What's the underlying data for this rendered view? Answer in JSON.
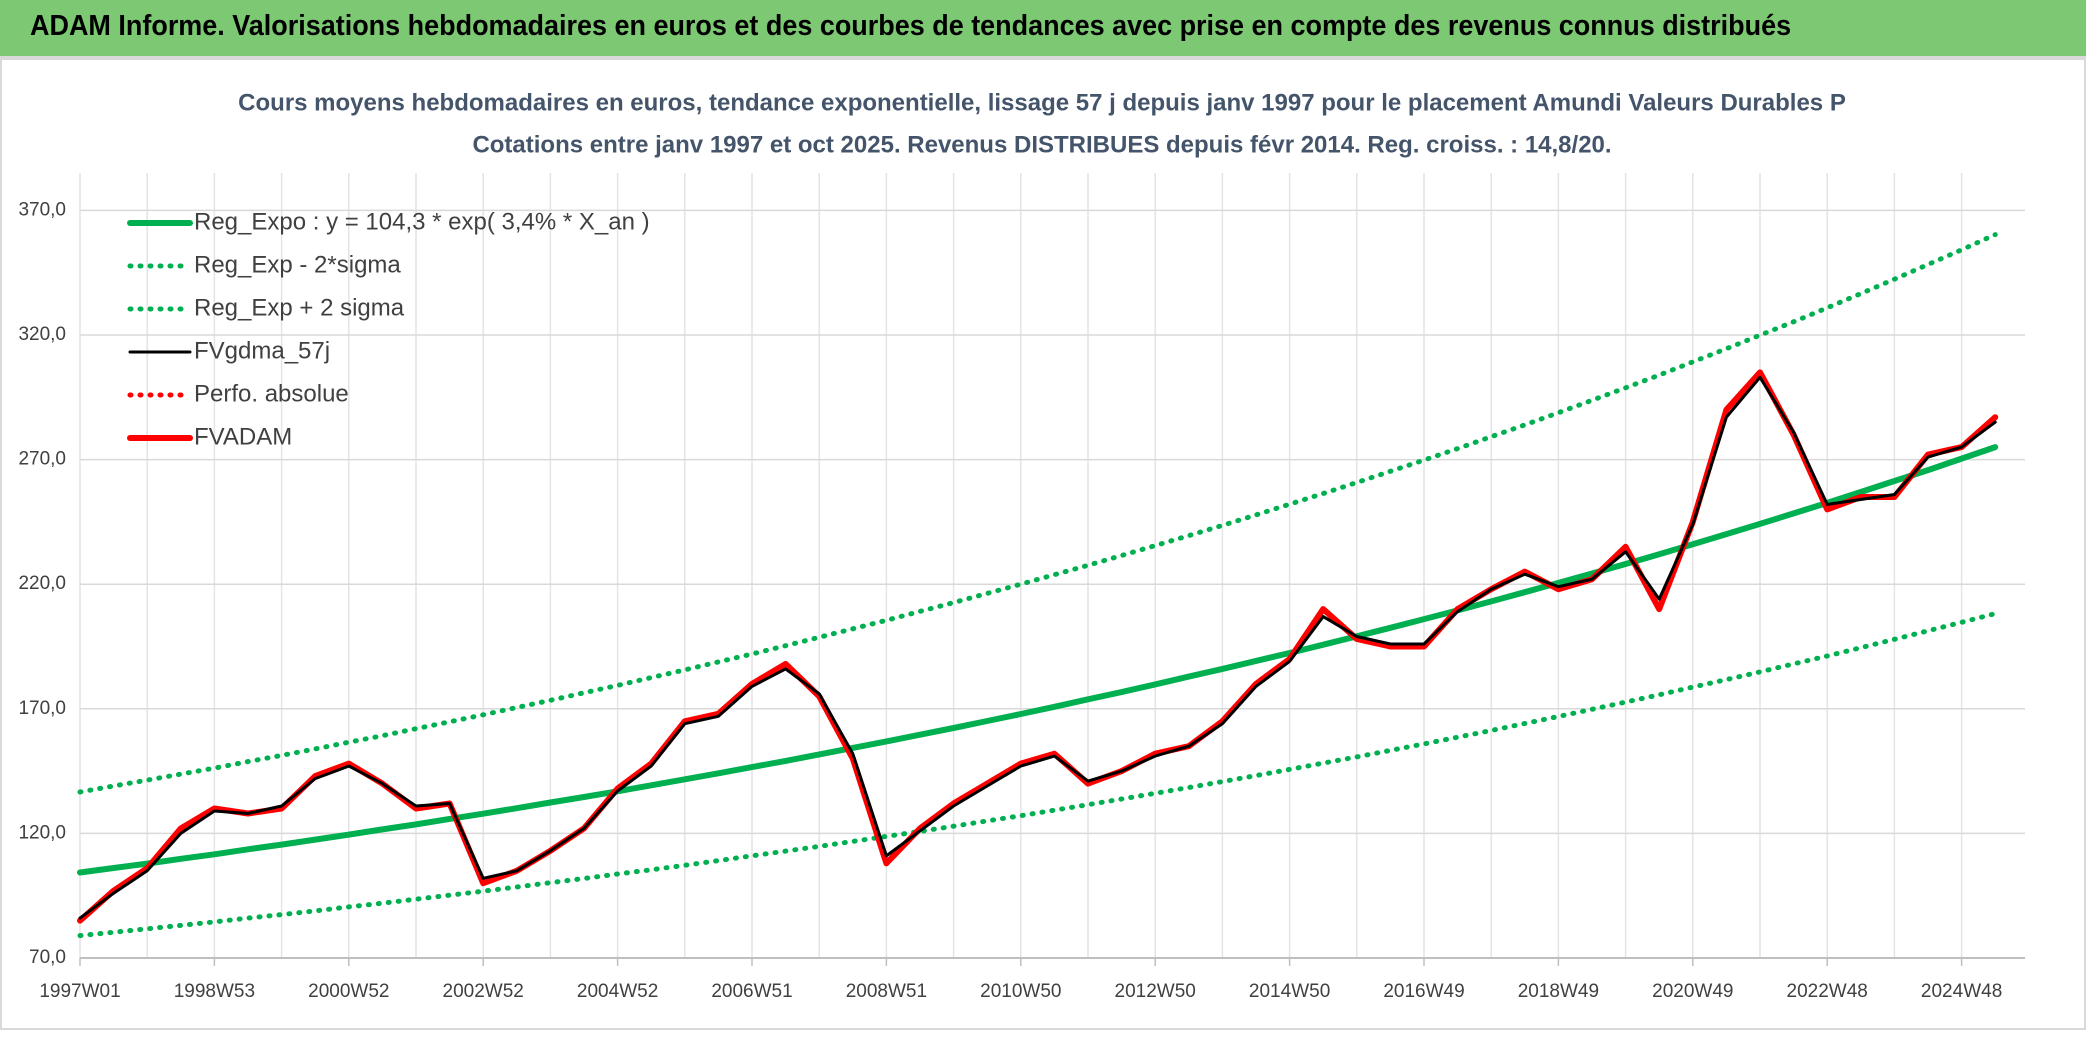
{
  "header": {
    "title": "ADAM Informe. Valorisations hebdomadaires en euros et des courbes de tendances avec prise en compte des revenus connus distribués"
  },
  "chart_data": {
    "type": "line",
    "title": "Cours moyens hebdomadaires en euros, tendance exponentielle, lissage 57 j depuis janv 1997 pour le placement Amundi Valeurs Durables P",
    "subtitle": "Cotations entre janv 1997 et oct 2025. Revenus DISTRIBUES depuis févr 2014. Reg. croiss. : 14,8/20.",
    "categories": [
      "1997W01",
      null,
      null,
      null,
      "1998W53",
      null,
      null,
      null,
      "2000W52",
      null,
      null,
      null,
      "2002W52",
      null,
      null,
      null,
      "2004W52",
      null,
      null,
      null,
      "2006W51",
      null,
      null,
      null,
      "2008W51",
      null,
      null,
      null,
      "2010W50",
      null,
      null,
      null,
      "2012W50",
      null,
      null,
      null,
      "2014W50",
      null,
      null,
      null,
      "2016W49",
      null,
      null,
      null,
      "2018W49",
      null,
      null,
      null,
      "2020W49",
      null,
      null,
      null,
      "2022W48",
      null,
      null,
      null,
      "2024W48",
      null
    ],
    "ylim": [
      70,
      385
    ],
    "yticks": [
      {
        "value": 70,
        "label": "70,0"
      },
      {
        "value": 120,
        "label": "120,0"
      },
      {
        "value": 170,
        "label": "170,0"
      },
      {
        "value": 220,
        "label": "220,0"
      },
      {
        "value": 270,
        "label": "270,0"
      },
      {
        "value": 320,
        "label": "320,0"
      },
      {
        "value": 370,
        "label": "370,0"
      }
    ],
    "grid": true,
    "legend": "top-left",
    "series": [
      {
        "name": "Reg_Expo : y = 104,3 * exp( 3,4% *  X_an )",
        "color": "#00b050",
        "style": "solid",
        "values": [
          104.3,
          106.1,
          107.9,
          109.8,
          111.6,
          113.6,
          115.5,
          117.5,
          119.5,
          121.6,
          123.6,
          125.8,
          127.9,
          130.1,
          132.4,
          134.6,
          136.9,
          139.3,
          141.7,
          144.1,
          146.6,
          149.1,
          151.7,
          154.3,
          156.9,
          159.6,
          162.3,
          165.1,
          167.9,
          170.8,
          173.8,
          176.7,
          179.8,
          182.9,
          186.0,
          189.2,
          192.4,
          195.7,
          199.1,
          202.5,
          206.0,
          209.5,
          213.1,
          216.8,
          220.5,
          224.3,
          228.1,
          232.0,
          236.0,
          240.1,
          244.2,
          248.4,
          252.6,
          257.0,
          261.4,
          265.8,
          270.4,
          275.0
        ]
      },
      {
        "name": "Reg_Exp - 2*sigma",
        "color": "#00b050",
        "style": "dotted",
        "values": [
          79.0,
          80.3,
          81.7,
          83.1,
          84.5,
          86.0,
          87.4,
          88.9,
          90.5,
          92.0,
          93.6,
          95.2,
          96.8,
          98.5,
          100.2,
          101.9,
          103.7,
          105.4,
          107.2,
          109.1,
          111.0,
          112.9,
          114.8,
          116.8,
          118.8,
          120.8,
          122.9,
          125.0,
          127.1,
          129.3,
          131.5,
          133.8,
          136.1,
          138.4,
          140.8,
          143.2,
          145.7,
          148.2,
          150.7,
          153.3,
          155.9,
          158.6,
          161.3,
          164.1,
          166.9,
          169.8,
          172.7,
          175.6,
          178.7,
          181.7,
          184.8,
          188.0,
          191.2,
          194.5,
          197.9,
          201.3,
          204.7,
          208.2
        ]
      },
      {
        "name": "Reg_Exp + 2 sigma",
        "color": "#00b050",
        "style": "dotted",
        "values": [
          136.6,
          139.0,
          141.4,
          143.8,
          146.2,
          148.8,
          151.3,
          153.9,
          156.6,
          159.2,
          162.0,
          164.8,
          167.6,
          170.5,
          173.4,
          176.4,
          179.4,
          182.5,
          185.6,
          188.8,
          192.0,
          195.3,
          198.7,
          202.1,
          205.5,
          209.1,
          212.6,
          216.3,
          220.0,
          223.8,
          227.6,
          231.5,
          235.5,
          239.5,
          243.6,
          247.8,
          252.1,
          256.4,
          260.8,
          265.3,
          269.8,
          274.4,
          279.2,
          283.9,
          288.8,
          293.8,
          298.8,
          303.9,
          309.2,
          314.5,
          319.9,
          325.3,
          330.9,
          336.6,
          342.4,
          348.3,
          354.2,
          360.3
        ]
      },
      {
        "name": "FVgdma_57j",
        "color": "#000000",
        "style": "solid",
        "values": [
          86,
          96,
          105,
          120,
          129,
          128,
          131,
          142,
          147,
          140,
          131,
          132,
          102,
          105,
          113,
          122,
          137,
          147,
          164,
          167,
          179,
          186,
          176,
          152,
          111,
          121,
          131,
          139,
          147,
          151,
          141,
          145,
          151,
          155,
          164,
          179,
          189,
          207,
          199,
          196,
          196,
          209,
          218,
          224,
          219,
          222,
          233,
          214,
          244,
          287,
          303,
          281,
          252,
          254,
          256,
          271,
          275,
          285
        ]
      },
      {
        "name": "Perfo. absolue",
        "color": "#ff0000",
        "style": "dotted",
        "values": [
          null,
          null,
          null,
          null,
          null,
          null,
          null,
          null,
          null,
          null,
          null,
          null,
          null,
          null,
          null,
          null,
          null,
          null,
          null,
          null,
          null,
          null,
          null,
          null,
          null,
          null,
          null,
          null,
          null,
          null,
          null,
          null,
          null,
          null,
          null,
          null,
          null,
          null,
          null,
          null,
          null,
          null,
          null,
          null,
          null,
          null,
          null,
          null,
          null,
          null,
          null,
          null,
          null,
          null,
          null,
          null,
          null,
          null
        ]
      },
      {
        "name": "FVADAM",
        "color": "#ff0000",
        "style": "solid",
        "values": [
          85,
          97,
          106,
          122,
          130,
          128,
          130,
          143,
          148,
          140,
          130,
          132,
          100,
          105,
          113,
          122,
          138,
          148,
          165,
          168,
          180,
          188,
          175,
          150,
          108,
          122,
          132,
          140,
          148,
          152,
          140,
          145,
          152,
          155,
          165,
          180,
          190,
          210,
          198,
          195,
          195,
          210,
          218,
          225,
          218,
          222,
          235,
          210,
          245,
          290,
          305,
          280,
          250,
          255,
          255,
          272,
          275,
          287
        ]
      }
    ]
  }
}
